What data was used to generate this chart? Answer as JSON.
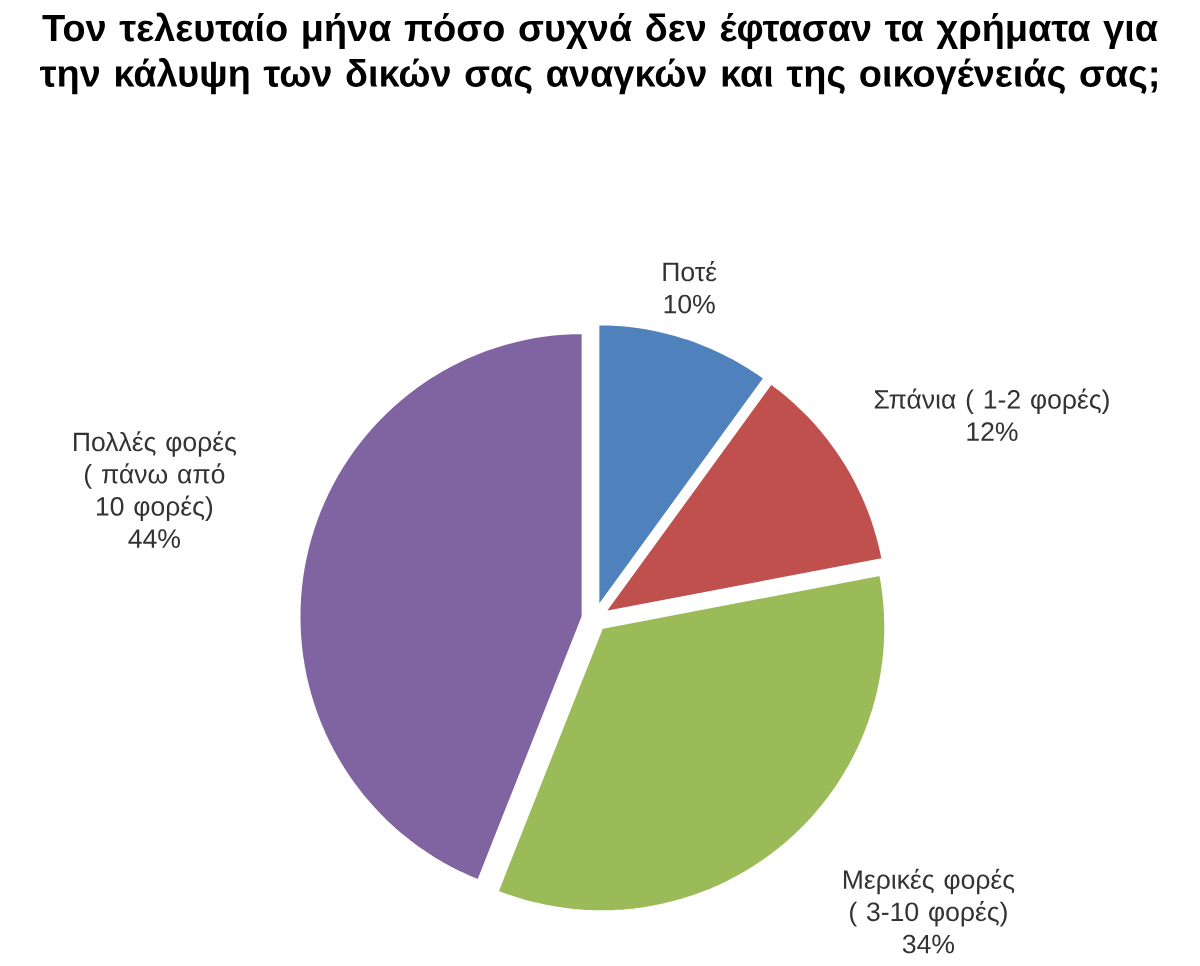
{
  "chart_data": {
    "type": "pie",
    "title": "Τον τελευταίο μήνα πόσο συχνά δεν έφτασαν τα χρήματα για την κάλυψη των δικών σας αναγκών και της οικογένειάς σας;",
    "categories": [
      "Ποτέ",
      "Σπάνια ( 1-2 φορές)",
      "Μερικές φορές ( 3-10 φορές)",
      "Πολλές φορές ( πάνω από 10 φορές)"
    ],
    "values": [
      10,
      12,
      34,
      44
    ],
    "value_labels": [
      "10%",
      "12%",
      "34%",
      "44%"
    ],
    "colors": [
      "#4f81bd",
      "#c0504d",
      "#9bbb59",
      "#8064a2"
    ]
  }
}
